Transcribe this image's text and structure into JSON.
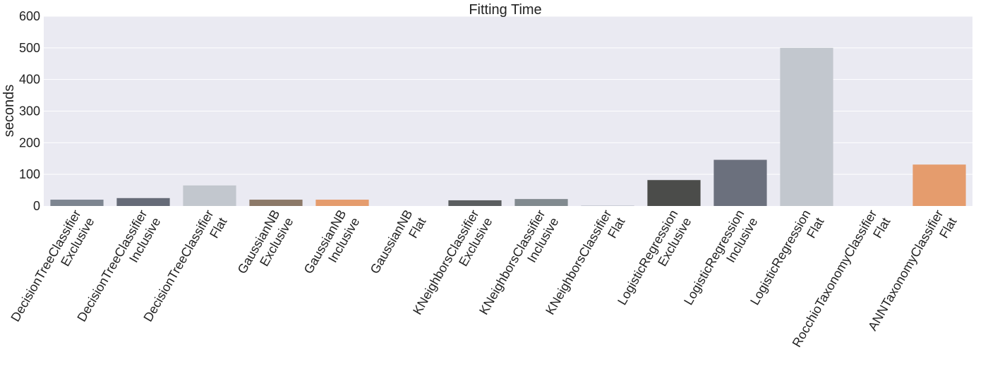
{
  "chart_data": {
    "type": "bar",
    "title": "Fitting Time",
    "xlabel": "",
    "ylabel": "seconds",
    "ylim": [
      0,
      600
    ],
    "yticks": [
      0,
      100,
      200,
      300,
      400,
      500,
      600
    ],
    "grid": true,
    "categories": [
      [
        "DecisionTreeClassifier",
        "Exclusive"
      ],
      [
        "DecisionTreeClassifier",
        "Inclusive"
      ],
      [
        "DecisionTreeClassifier",
        "Flat"
      ],
      [
        "GaussianNB",
        "Exclusive"
      ],
      [
        "GaussianNB",
        "Inclusive"
      ],
      [
        "GaussianNB",
        "Flat"
      ],
      [
        "KNeighborsClassifier",
        "Exclusive"
      ],
      [
        "KNeighborsClassifier",
        "Inclusive"
      ],
      [
        "KNeighborsClassifier",
        "Flat"
      ],
      [
        "LogisticRegression",
        "Exclusive"
      ],
      [
        "LogisticRegression",
        "Inclusive"
      ],
      [
        "LogisticRegression",
        "Flat"
      ],
      [
        "RocchioTaxonomyClassifier",
        "Flat"
      ],
      [
        "ANNTaxonomyClassifier",
        "Flat"
      ]
    ],
    "values": [
      20,
      25,
      65,
      20,
      20,
      0,
      18,
      22,
      2,
      82,
      146,
      500,
      0,
      131
    ],
    "colors": [
      "#7d8590",
      "#666b78",
      "#c2c7ce",
      "#8c7968",
      "#e59c6d",
      "#c2c7ce",
      "#5b5e60",
      "#818a8f",
      "#c6c9d2",
      "#4b4c4a",
      "#6b707d",
      "#c2c7ce",
      "#c2c7ce",
      "#e59c6d"
    ]
  }
}
